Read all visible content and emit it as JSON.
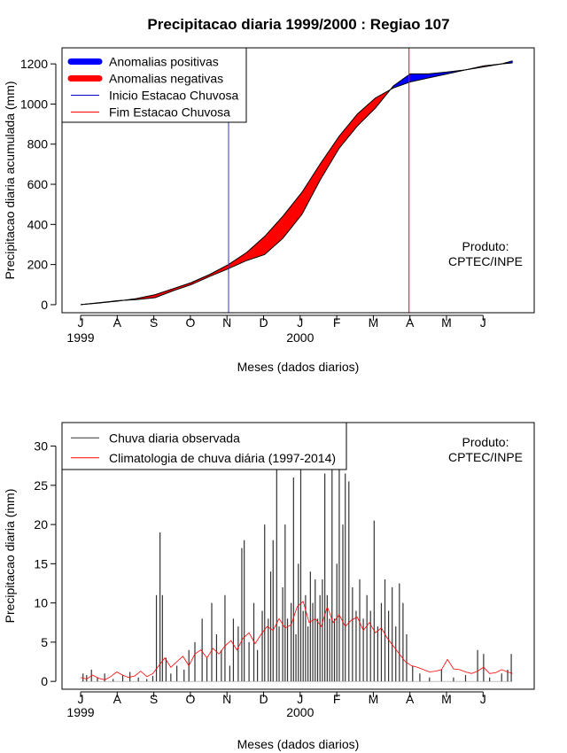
{
  "title": "Precipitacao diaria 1999/2000 : Regiao 107",
  "chart_data": [
    {
      "type": "area",
      "xlabel": "Meses (dados diarios)",
      "ylabel": "Precipitacao diaria acumulada (mm)",
      "ylim": [
        -40,
        1280
      ],
      "yticks": [
        0,
        200,
        400,
        600,
        800,
        1000,
        1200
      ],
      "month_labels": [
        "J",
        "A",
        "S",
        "O",
        "N",
        "D",
        "J",
        "F",
        "M",
        "A",
        "M",
        "J"
      ],
      "year_labels": [
        {
          "month_index": 0,
          "text": "1999"
        },
        {
          "month_index": 6,
          "text": "2000"
        }
      ],
      "legend": [
        {
          "label": "Anomalias positivas",
          "color": "#0000ff",
          "style": "thick"
        },
        {
          "label": "Anomalias negativas",
          "color": "#ff0000",
          "style": "thick"
        },
        {
          "label": "Inicio Estacao Chuvosa",
          "color": "#0000cc",
          "style": "thin"
        },
        {
          "label": "Fim Estacao Chuvosa",
          "color": "#ff0000",
          "style": "thin"
        }
      ],
      "product_text": [
        "Produto:",
        "CPTEC/INPE"
      ],
      "rain_season_start_day": 123,
      "rain_season_end_day": 273,
      "x_days": [
        0,
        15,
        31,
        46,
        62,
        77,
        92,
        107,
        123,
        138,
        153,
        168,
        184,
        199,
        215,
        230,
        245,
        260,
        274,
        289,
        305,
        320,
        335,
        350,
        359
      ],
      "observed_cumulative": [
        0,
        10,
        20,
        25,
        35,
        70,
        100,
        140,
        180,
        220,
        250,
        330,
        450,
        620,
        780,
        890,
        980,
        1090,
        1150,
        1150,
        1160,
        1170,
        1185,
        1200,
        1215
      ],
      "climatology_cumulative": [
        0,
        8,
        18,
        30,
        50,
        80,
        110,
        150,
        200,
        260,
        340,
        440,
        560,
        700,
        840,
        950,
        1030,
        1080,
        1110,
        1130,
        1150,
        1170,
        1190,
        1200,
        1205
      ]
    },
    {
      "type": "bar",
      "xlabel": "Meses (dados diarios)",
      "ylabel": "Precipitacao diaria (mm)",
      "ylim": [
        -1,
        33
      ],
      "yticks": [
        0,
        5,
        10,
        15,
        20,
        25,
        30
      ],
      "month_labels": [
        "J",
        "A",
        "S",
        "O",
        "N",
        "D",
        "J",
        "F",
        "M",
        "A",
        "M",
        "J"
      ],
      "year_labels": [
        {
          "month_index": 0,
          "text": "1999"
        },
        {
          "month_index": 6,
          "text": "2000"
        }
      ],
      "legend": [
        {
          "label": "Chuva diaria observada",
          "color": "#333333",
          "style": "thin"
        },
        {
          "label": "Climatologia de chuva diária (1997-2014)",
          "color": "#ff0000",
          "style": "thin"
        }
      ],
      "product_text": [
        "Produto:",
        "CPTEC/INPE"
      ],
      "series": [
        {
          "name": "Chuva diaria observada",
          "x_days": [
            2,
            5,
            9,
            14,
            20,
            27,
            35,
            41,
            48,
            55,
            60,
            63,
            66,
            68,
            71,
            75,
            80,
            86,
            90,
            95,
            101,
            105,
            109,
            113,
            117,
            120,
            124,
            127,
            131,
            134,
            136,
            140,
            144,
            147,
            151,
            153,
            156,
            158,
            160,
            163,
            165,
            168,
            170,
            172,
            175,
            177,
            179,
            181,
            183,
            185,
            187,
            189,
            191,
            193,
            195,
            197,
            199,
            201,
            203,
            205,
            207,
            209,
            211,
            213,
            215,
            218,
            220,
            223,
            226,
            229,
            232,
            235,
            238,
            241,
            244,
            247,
            250,
            253,
            256,
            259,
            262,
            265,
            268,
            271,
            276,
            282,
            290,
            300,
            310,
            320,
            330,
            335,
            340,
            350,
            355,
            358
          ],
          "values": [
            1.0,
            0.8,
            1.5,
            0.5,
            1.0,
            0.3,
            0.8,
            1.2,
            0.5,
            0.3,
            0.7,
            11.0,
            19.0,
            11.0,
            3.0,
            1.0,
            2.0,
            1.5,
            4.0,
            5.0,
            8.0,
            3.0,
            10.0,
            6.0,
            4.0,
            11.0,
            2.0,
            8.0,
            7.0,
            17.0,
            18.0,
            5.0,
            10.0,
            4.0,
            9.0,
            20.0,
            8.0,
            14.0,
            18.0,
            27.5,
            7.0,
            12.0,
            20.0,
            8.0,
            10.0,
            26.0,
            6.0,
            15.0,
            27.5,
            9.0,
            11.0,
            7.0,
            14.0,
            10.0,
            13.0,
            8.0,
            11.0,
            13.0,
            26.5,
            11.0,
            8.0,
            27.0,
            8.0,
            15.0,
            27.5,
            20.0,
            26.5,
            25.5,
            12.0,
            9.0,
            13.0,
            8.0,
            11.0,
            9.0,
            20.5,
            7.0,
            10.0,
            13.0,
            9.0,
            12.0,
            7.0,
            12.5,
            10.0,
            6.0,
            2.0,
            1.0,
            0.5,
            1.5,
            0.5,
            0.8,
            4.0,
            3.5,
            0.5,
            1.0,
            1.5,
            3.5
          ]
        },
        {
          "name": "Climatologia de chuva diária (1997-2014)",
          "x_days": [
            0,
            5,
            10,
            15,
            20,
            25,
            30,
            35,
            40,
            45,
            50,
            55,
            60,
            65,
            70,
            75,
            80,
            85,
            90,
            95,
            100,
            105,
            110,
            115,
            120,
            125,
            130,
            135,
            140,
            145,
            150,
            155,
            160,
            165,
            170,
            175,
            180,
            185,
            190,
            195,
            200,
            205,
            210,
            215,
            220,
            225,
            230,
            235,
            240,
            245,
            250,
            255,
            260,
            265,
            270,
            275,
            280,
            285,
            290,
            295,
            300,
            305,
            310,
            315,
            320,
            325,
            330,
            335,
            340,
            345,
            350,
            355,
            359
          ],
          "values": [
            0.5,
            0.3,
            0.8,
            0.4,
            0.2,
            0.6,
            1.2,
            0.8,
            0.5,
            0.7,
            1.3,
            0.6,
            1.0,
            2.0,
            3.0,
            1.8,
            2.5,
            3.2,
            2.0,
            3.5,
            4.0,
            3.0,
            4.2,
            3.5,
            4.5,
            5.2,
            4.0,
            5.5,
            6.2,
            4.8,
            6.0,
            7.0,
            6.5,
            8.0,
            6.8,
            7.2,
            9.5,
            10.2,
            7.5,
            8.0,
            7.0,
            9.5,
            7.5,
            8.5,
            7.0,
            7.8,
            8.2,
            6.5,
            7.5,
            6.2,
            6.8,
            5.5,
            4.5,
            3.5,
            2.5,
            2.0,
            1.8,
            1.5,
            1.2,
            1.3,
            1.5,
            2.8,
            1.6,
            1.5,
            1.2,
            1.0,
            1.3,
            1.8,
            1.0,
            1.1,
            1.5,
            1.2,
            1.0
          ]
        }
      ]
    }
  ]
}
